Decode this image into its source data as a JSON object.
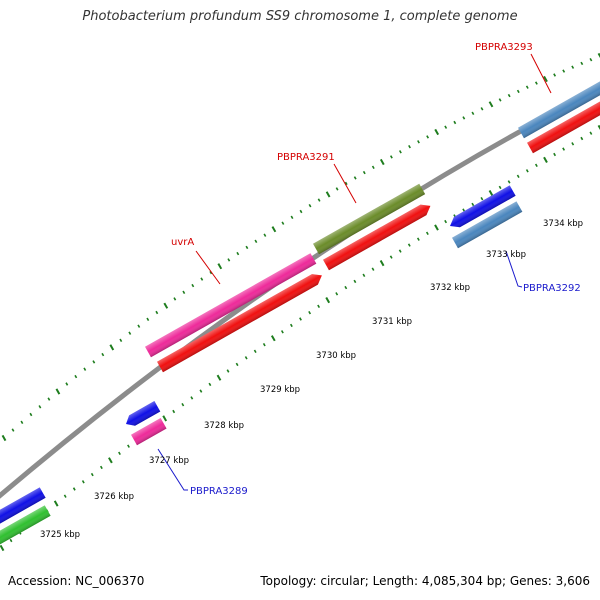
{
  "title": "Photobacterium profundum SS9 chromosome 1, complete genome",
  "footer": {
    "accession": "Accession: NC_006370",
    "summary": "Topology: circular; Length: 4,085,304 bp; Genes: 3,606"
  },
  "colors": {
    "backbone": "#8c8c8c",
    "tick": "#1e7d1e",
    "label_forward": "#d40000",
    "label_reverse": "#1a1acc",
    "pink": "#ee2a9a",
    "red": "#f01010",
    "olive": "#6b8c2a",
    "blue": "#1010e6",
    "steel": "#4a86be",
    "green": "#30c030"
  },
  "scale_labels": [
    "3725 kbp",
    "3726 kbp",
    "3727 kbp",
    "3728 kbp",
    "3729 kbp",
    "3730 kbp",
    "3731 kbp",
    "3732 kbp",
    "3733 kbp",
    "3734 kbp"
  ],
  "gene_labels": {
    "uvrA": "uvrA",
    "PBPRA3291": "PBPRA3291",
    "PBPRA3293": "PBPRA3293",
    "PBPRA3292": "PBPRA3292",
    "PBPRA3289": "PBPRA3289"
  }
}
